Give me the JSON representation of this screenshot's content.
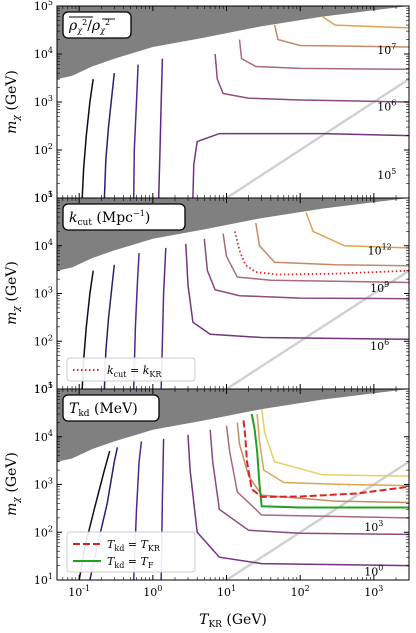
{
  "figure": {
    "xlabel": "T_KR (GeV)",
    "ylabel": "m_χ (GeV)"
  },
  "chart_data": [
    {
      "type": "line",
      "panel": "top",
      "box_label": "ρ̄χ² / ρ̄χ²",
      "xscale": "log",
      "yscale": "log",
      "xlim": [
        0.05,
        3000
      ],
      "ylim": [
        10,
        100000
      ],
      "x_ticks": [],
      "y_ticks": [
        "10^1",
        "10^2",
        "10^3",
        "10^4",
        "10^5"
      ],
      "contour_labels": [
        {
          "text": "10^7",
          "x": 1500,
          "y": 12000,
          "color": "#d1903f"
        },
        {
          "text": "10^6",
          "x": 1500,
          "y": 800,
          "color": "#a96a7a"
        },
        {
          "text": "10^5",
          "x": 1500,
          "y": 30,
          "color": "#5b2a86"
        }
      ],
      "contours": [
        {
          "color": "#0d0b1e",
          "points": [
            [
              0.11,
              10
            ],
            [
              0.115,
              40
            ],
            [
              0.125,
              200
            ],
            [
              0.14,
              1000
            ],
            [
              0.155,
              3000
            ]
          ]
        },
        {
          "color": "#2a1f6e",
          "points": [
            [
              0.22,
              10
            ],
            [
              0.23,
              60
            ],
            [
              0.25,
              300
            ],
            [
              0.28,
              1500
            ],
            [
              0.3,
              4000
            ]
          ]
        },
        {
          "color": "#4b2a8a",
          "points": [
            [
              0.55,
              10
            ],
            [
              0.56,
              100
            ],
            [
              0.6,
              1000
            ],
            [
              0.63,
              6000
            ]
          ]
        },
        {
          "color": "#5b2a86",
          "points": [
            [
              1.2,
              10
            ],
            [
              1.25,
              100
            ],
            [
              1.3,
              1000
            ],
            [
              1.35,
              8000
            ]
          ]
        },
        {
          "color": "#74347f",
          "points": [
            [
              3.5,
              10
            ],
            [
              3.6,
              50
            ],
            [
              4,
              150
            ],
            [
              8,
              220
            ],
            [
              40,
              220
            ],
            [
              200,
              220
            ],
            [
              3000,
              200
            ]
          ]
        },
        {
          "color": "#8c4a7e",
          "points": [
            [
              7,
              10000
            ],
            [
              7.5,
              3000
            ],
            [
              9,
              1500
            ],
            [
              20,
              1200
            ],
            [
              100,
              1100
            ],
            [
              600,
              1050
            ],
            [
              3000,
              1000
            ]
          ]
        },
        {
          "color": "#a96a7a",
          "points": [
            [
              15,
              20000
            ],
            [
              16,
              8000
            ],
            [
              25,
              5500
            ],
            [
              100,
              5000
            ],
            [
              3000,
              4800
            ]
          ]
        },
        {
          "color": "#c58a66",
          "points": [
            [
              45,
              40000
            ],
            [
              50,
              20000
            ],
            [
              100,
              15000
            ],
            [
              3000,
              14000
            ]
          ]
        },
        {
          "color": "#dba54f",
          "points": [
            [
              200,
              60000
            ],
            [
              300,
              40000
            ],
            [
              3000,
              35000
            ]
          ]
        }
      ]
    },
    {
      "type": "line",
      "panel": "middle",
      "box_label": "k_cut (Mpc⁻¹)",
      "xscale": "log",
      "yscale": "log",
      "xlim": [
        0.05,
        3000
      ],
      "ylim": [
        10,
        100000
      ],
      "x_ticks": [],
      "y_ticks": [
        "10^1",
        "10^2",
        "10^3",
        "10^4",
        "10^5"
      ],
      "contour_labels": [
        {
          "text": "10^12",
          "x": 1200,
          "y": 8000,
          "color": "#d1a030"
        },
        {
          "text": "10^9",
          "x": 1200,
          "y": 1300,
          "color": "#a96a7a"
        },
        {
          "text": "10^6",
          "x": 1200,
          "y": 80,
          "color": "#5b2a86"
        }
      ],
      "legend": {
        "position": "bottom-left",
        "entries": [
          {
            "label": "k_cut = k_KR",
            "style": "dotted",
            "color": "#dd2222"
          }
        ]
      },
      "dotted_line": {
        "color": "#dd2222",
        "points": [
          [
            13,
            20000
          ],
          [
            15,
            8000
          ],
          [
            18,
            4000
          ],
          [
            25,
            2800
          ],
          [
            50,
            2500
          ],
          [
            300,
            2600
          ],
          [
            3000,
            3000
          ]
        ]
      },
      "contours": [
        {
          "color": "#0d0b1e",
          "points": [
            [
              0.11,
              10
            ],
            [
              0.115,
              40
            ],
            [
              0.125,
              200
            ],
            [
              0.14,
              1000
            ],
            [
              0.155,
              3000
            ]
          ]
        },
        {
          "color": "#2a1f6e",
          "points": [
            [
              0.22,
              10
            ],
            [
              0.23,
              60
            ],
            [
              0.25,
              300
            ],
            [
              0.28,
              1500
            ],
            [
              0.3,
              4000
            ]
          ]
        },
        {
          "color": "#4b2a8a",
          "points": [
            [
              0.55,
              10
            ],
            [
              0.58,
              200
            ],
            [
              0.62,
              2000
            ],
            [
              0.65,
              7000
            ]
          ]
        },
        {
          "color": "#5b2a86",
          "points": [
            [
              1.3,
              10
            ],
            [
              1.35,
              100
            ],
            [
              1.4,
              1000
            ],
            [
              1.5,
              9000
            ]
          ]
        },
        {
          "color": "#74347f",
          "points": [
            [
              2.8,
              11000
            ],
            [
              3,
              1500
            ],
            [
              3.5,
              250
            ],
            [
              6,
              140
            ],
            [
              30,
              120
            ],
            [
              3000,
              110
            ]
          ]
        },
        {
          "color": "#8c4a7e",
          "points": [
            [
              5,
              14000
            ],
            [
              5.5,
              3000
            ],
            [
              7,
              1200
            ],
            [
              15,
              900
            ],
            [
              100,
              800
            ],
            [
              3000,
              780
            ]
          ]
        },
        {
          "color": "#a96a7a",
          "points": [
            [
              9,
              18000
            ],
            [
              10,
              6000
            ],
            [
              14,
              2200
            ],
            [
              40,
              1900
            ],
            [
              3000,
              1700
            ]
          ]
        },
        {
          "color": "#c58a66",
          "points": [
            [
              25,
              30000
            ],
            [
              28,
              10000
            ],
            [
              45,
              4500
            ],
            [
              300,
              4000
            ],
            [
              3000,
              3800
            ]
          ]
        },
        {
          "color": "#dba54f",
          "points": [
            [
              120,
              50000
            ],
            [
              150,
              20000
            ],
            [
              400,
              10000
            ],
            [
              3000,
              9000
            ]
          ]
        }
      ]
    },
    {
      "type": "line",
      "panel": "bottom",
      "box_label": "T_kd (MeV)",
      "xscale": "log",
      "yscale": "log",
      "xlim": [
        0.05,
        3000
      ],
      "ylim": [
        10,
        100000
      ],
      "x_ticks": [
        "10^-1",
        "10^0",
        "10^1",
        "10^2",
        "10^3"
      ],
      "y_ticks": [
        "10^1",
        "10^2",
        "10^3",
        "10^4",
        "10^5"
      ],
      "contour_labels": [
        {
          "text": "10^3",
          "x": 1000,
          "y": 130,
          "color": "#c07a55"
        },
        {
          "text": "10^0",
          "x": 1000,
          "y": 15,
          "color": "#7a3a7e"
        }
      ],
      "legend": {
        "position": "bottom-left",
        "entries": [
          {
            "label": "T_kd = T_KR",
            "style": "dashed",
            "color": "#dd2222"
          },
          {
            "label": "T_kd = T_F",
            "style": "solid",
            "color": "#22a022"
          }
        ]
      },
      "dashed_line": {
        "color": "#dd2222",
        "points": [
          [
            17,
            22000
          ],
          [
            18,
            10000
          ],
          [
            19,
            3000
          ],
          [
            22,
            800
          ],
          [
            30,
            550
          ],
          [
            100,
            560
          ],
          [
            600,
            650
          ],
          [
            3000,
            900
          ]
        ]
      },
      "green_line": {
        "color": "#22a022",
        "points": [
          [
            22,
            30000
          ],
          [
            24,
            15000
          ],
          [
            26,
            5000
          ],
          [
            28,
            1000
          ],
          [
            30,
            350
          ],
          [
            100,
            330
          ],
          [
            3000,
            330
          ]
        ]
      },
      "contours": [
        {
          "color": "#0d0b1e",
          "points": [
            [
              0.1,
              10
            ],
            [
              0.12,
              50
            ],
            [
              0.16,
              300
            ],
            [
              0.22,
              2000
            ],
            [
              0.26,
              5000
            ]
          ]
        },
        {
          "color": "#2a1f6e",
          "points": [
            [
              0.14,
              10
            ],
            [
              0.18,
              60
            ],
            [
              0.24,
              400
            ],
            [
              0.3,
              3000
            ],
            [
              0.33,
              6000
            ]
          ]
        },
        {
          "color": "#4b2a8a",
          "points": [
            [
              0.55,
              10
            ],
            [
              0.6,
              300
            ],
            [
              0.65,
              3000
            ],
            [
              0.7,
              8000
            ]
          ]
        },
        {
          "color": "#5b2a86",
          "points": [
            [
              1.3,
              10
            ],
            [
              1.35,
              500
            ],
            [
              1.4,
              9000
            ]
          ]
        },
        {
          "color": "#74347f",
          "points": [
            [
              3,
              11000
            ],
            [
              3.2,
              2000
            ],
            [
              4,
              100
            ],
            [
              8,
              30
            ],
            [
              30,
              22
            ],
            [
              3000,
              20
            ]
          ]
        },
        {
          "color": "#8c4a7e",
          "points": [
            [
              6,
              14000
            ],
            [
              6.5,
              3000
            ],
            [
              8,
              300
            ],
            [
              20,
              110
            ],
            [
              100,
              95
            ],
            [
              3000,
              90
            ]
          ]
        },
        {
          "color": "#a96a7a",
          "points": [
            [
              10,
              17000
            ],
            [
              11,
              5000
            ],
            [
              14,
              700
            ],
            [
              30,
              230
            ],
            [
              3000,
              200
            ]
          ]
        },
        {
          "color": "#c58a66",
          "points": [
            [
              14,
              20000
            ],
            [
              15,
              7000
            ],
            [
              20,
              1500
            ],
            [
              30,
              600
            ],
            [
              300,
              450
            ],
            [
              3000,
              420
            ]
          ]
        },
        {
          "color": "#dba54f",
          "points": [
            [
              26,
              30000
            ],
            [
              28,
              8000
            ],
            [
              32,
              2000
            ],
            [
              60,
              1100
            ],
            [
              400,
              1000
            ],
            [
              3000,
              950
            ]
          ]
        },
        {
          "color": "#e8d060",
          "points": [
            [
              30,
              40000
            ],
            [
              33,
              12000
            ],
            [
              45,
              3000
            ],
            [
              200,
              1600
            ],
            [
              3000,
              1500
            ]
          ]
        }
      ]
    }
  ]
}
